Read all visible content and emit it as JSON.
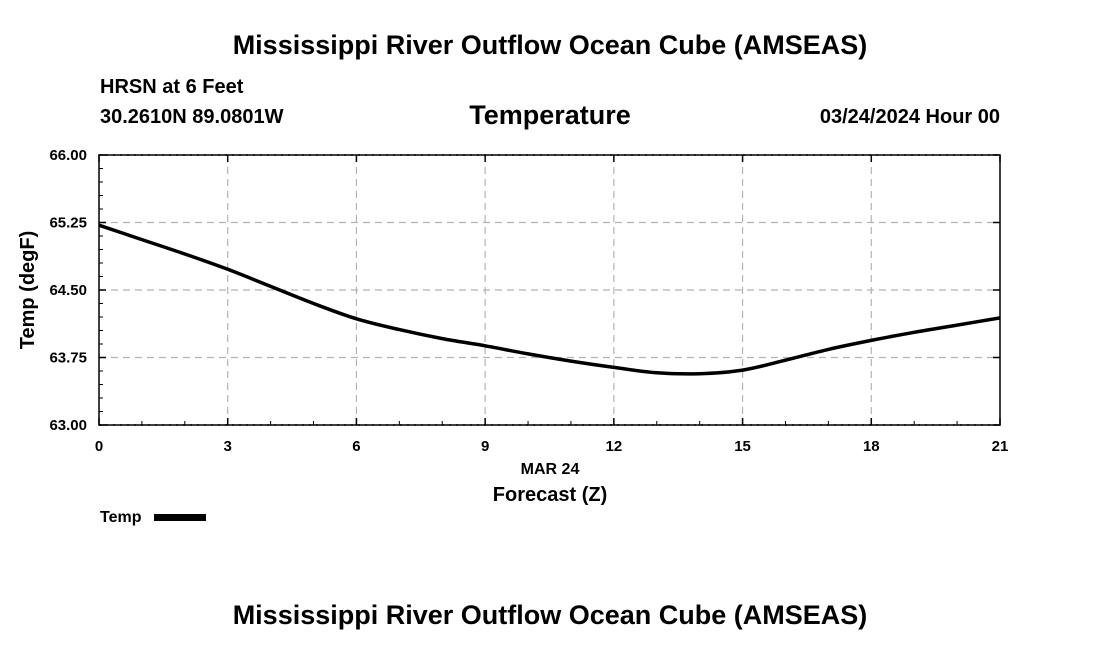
{
  "header": {
    "title": "Mississippi River Outflow Ocean Cube (AMSEAS)",
    "station": "HRSN at 6 Feet",
    "coords": "30.2610N  89.0801W",
    "panel": "Temperature",
    "datetime": "03/24/2024 Hour 00"
  },
  "footer": {
    "title": "Mississippi River Outflow Ocean Cube (AMSEAS)"
  },
  "chart_data": {
    "type": "line",
    "title": "Temperature",
    "xlabel": "Forecast (Z)",
    "xlabel_date": "MAR 24",
    "ylabel": "Temp (degF)",
    "xlim": [
      0,
      21
    ],
    "ylim": [
      63.0,
      66.0
    ],
    "x_ticks": [
      0,
      3,
      6,
      9,
      12,
      15,
      18,
      21
    ],
    "y_ticks": [
      "63.00",
      "63.75",
      "64.50",
      "65.25",
      "66.00"
    ],
    "grid": true,
    "legend_position": "bottom-left",
    "series": [
      {
        "name": "Temp",
        "color": "#000000",
        "x": [
          0,
          1,
          2,
          3,
          4,
          5,
          6,
          7,
          8,
          9,
          10,
          11,
          12,
          13,
          14,
          15,
          16,
          17,
          18,
          19,
          20,
          21
        ],
        "y": [
          65.22,
          65.06,
          64.9,
          64.73,
          64.54,
          64.35,
          64.18,
          64.06,
          63.96,
          63.88,
          63.79,
          63.71,
          63.64,
          63.58,
          63.57,
          63.61,
          63.72,
          63.84,
          63.94,
          64.03,
          64.11,
          64.19
        ]
      }
    ]
  }
}
